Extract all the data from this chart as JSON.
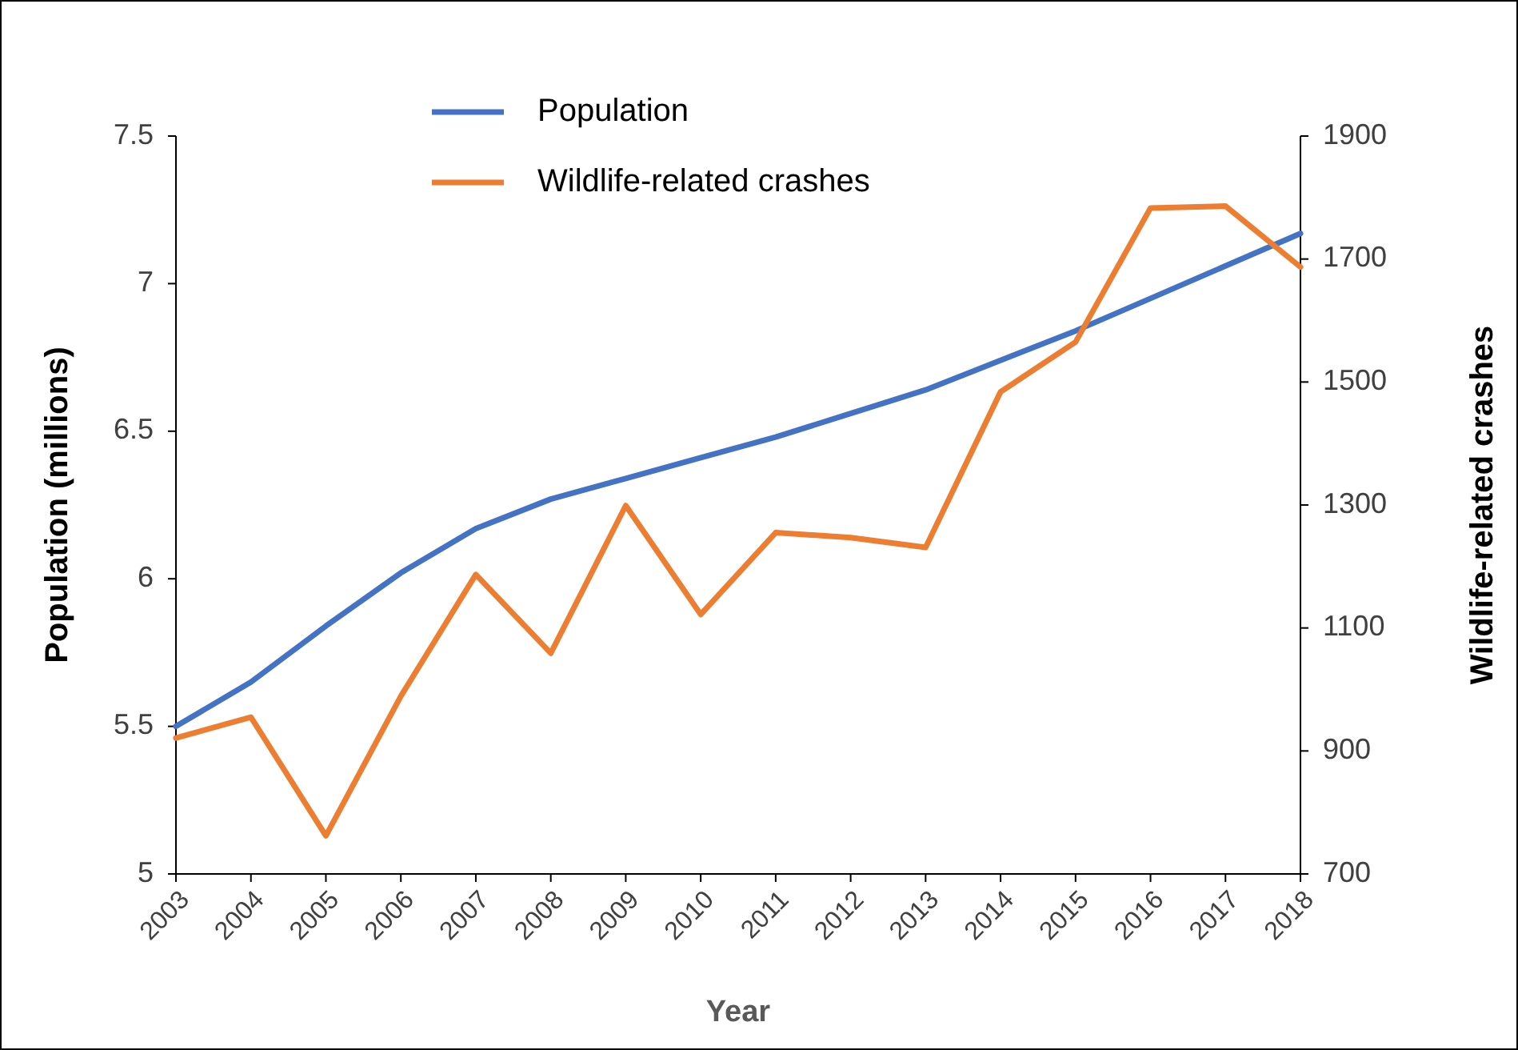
{
  "chart_data": {
    "type": "line",
    "xlabel": "Year",
    "ylabel": "Population (millions)",
    "y2label": "Wildlife-related crashes",
    "categories": [
      "2003",
      "2004",
      "2005",
      "2006",
      "2007",
      "2008",
      "2009",
      "2010",
      "2011",
      "2012",
      "2013",
      "2014",
      "2015",
      "2016",
      "2017",
      "2018"
    ],
    "series": [
      {
        "name": "Population",
        "color": "#4472c4",
        "values": [
          5.5,
          5.65,
          5.84,
          6.02,
          6.17,
          6.27,
          6.34,
          6.41,
          6.48,
          6.56,
          6.64,
          6.74,
          6.84,
          6.95,
          7.06,
          7.17
        ]
      },
      {
        "name": "Wildlife-related crashes",
        "color": "#ed7d31",
        "axis": "y2",
        "values": [
          921,
          955,
          762,
          989,
          1187,
          1059,
          1299,
          1122,
          1255,
          1247,
          1231,
          1484,
          1565,
          1783,
          1786,
          1687
        ]
      }
    ],
    "ylim": [
      5,
      7.5
    ],
    "yticks": [
      5,
      5.5,
      6,
      6.5,
      7,
      7.5
    ],
    "y2lim": [
      700,
      1900
    ],
    "y2ticks": [
      700,
      900,
      1100,
      1300,
      1500,
      1700,
      1900
    ],
    "grid": false,
    "legend": "top",
    "marker": "none",
    "line_style": "solid"
  }
}
